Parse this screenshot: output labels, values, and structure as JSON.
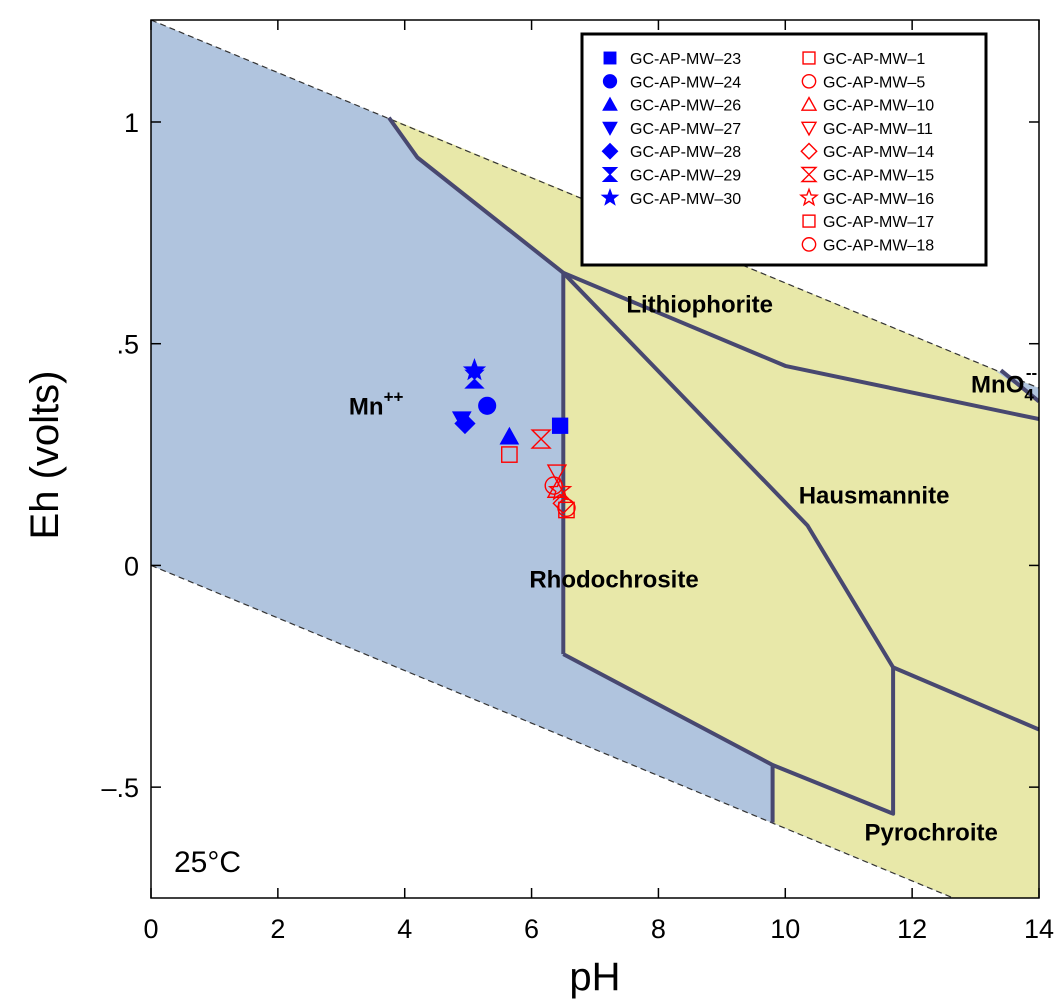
{
  "chart_data": {
    "type": "scatter",
    "subtype": "Eh-pH stability diagram",
    "xlabel": "pH",
    "ylabel": "Eh (volts)",
    "xlim": [
      0,
      14
    ],
    "ylim": [
      -0.75,
      1.23
    ],
    "x_ticks": [
      0,
      2,
      4,
      6,
      8,
      10,
      12,
      14
    ],
    "x_tick_labels": [
      "0",
      "2",
      "4",
      "6",
      "8",
      "10",
      "12",
      "14"
    ],
    "y_ticks": [
      -0.5,
      0,
      0.5,
      1
    ],
    "y_tick_labels": [
      "–.5",
      "0",
      ".5",
      "1"
    ],
    "temperature_label": "25°C",
    "colors": {
      "aqueous_field": "#b0c4de",
      "mineral_field": "#e8e8a9",
      "boundary": "#484870",
      "blue_series": "#0000ff",
      "red_series": "#ff0000"
    },
    "water_stability": {
      "upper": [
        [
          0,
          1.23
        ],
        [
          14,
          0.4
        ]
      ],
      "lower": [
        [
          0,
          0.0
        ],
        [
          14,
          -0.83
        ]
      ]
    },
    "regions": [
      {
        "label": "Mn",
        "superscript": "++",
        "phase": "aqueous",
        "x": 3.55,
        "y": 0.34
      },
      {
        "label": "MnO",
        "subscript": "4",
        "superscript": "--",
        "phase": "aqueous",
        "x": 13.45,
        "y": 0.39
      },
      {
        "label": "Lithiophorite",
        "phase": "mineral",
        "x": 8.65,
        "y": 0.57
      },
      {
        "label": "Hausmannite",
        "phase": "mineral",
        "x": 11.4,
        "y": 0.14
      },
      {
        "label": "Rhodochrosite",
        "phase": "mineral",
        "x": 7.3,
        "y": -0.05
      },
      {
        "label": "Pyrochroite",
        "phase": "mineral",
        "x": 12.3,
        "y": -0.62
      }
    ],
    "boundaries": [
      [
        [
          3.75,
          1.01
        ],
        [
          4.2,
          0.92
        ],
        [
          6.5,
          0.66
        ]
      ],
      [
        [
          6.5,
          0.66
        ],
        [
          6.5,
          -0.2
        ]
      ],
      [
        [
          6.5,
          0.66
        ],
        [
          10,
          0.45
        ],
        [
          14,
          0.33
        ]
      ],
      [
        [
          6.5,
          0.66
        ],
        [
          10.35,
          0.09
        ],
        [
          11.7,
          -0.23
        ]
      ],
      [
        [
          11.7,
          -0.23
        ],
        [
          11.7,
          -0.56
        ],
        [
          9.8,
          -0.45
        ],
        [
          6.5,
          -0.2
        ]
      ],
      [
        [
          9.8,
          -0.45
        ],
        [
          9.8,
          -0.58
        ]
      ],
      [
        [
          11.7,
          -0.23
        ],
        [
          14,
          -0.37
        ]
      ],
      [
        [
          13.4,
          0.44
        ],
        [
          14,
          0.37
        ]
      ]
    ],
    "legend_position": "top-right",
    "series": [
      {
        "name": "GC-AP-MW–23",
        "marker": "square",
        "filled": true,
        "color": "#0000ff",
        "x": 6.45,
        "y": 0.315
      },
      {
        "name": "GC-AP-MW–24",
        "marker": "circle",
        "filled": true,
        "color": "#0000ff",
        "x": 5.3,
        "y": 0.36
      },
      {
        "name": "GC-AP-MW–26",
        "marker": "triangle-up",
        "filled": true,
        "color": "#0000ff",
        "x": 5.65,
        "y": 0.29
      },
      {
        "name": "GC-AP-MW–27",
        "marker": "triangle-down",
        "filled": true,
        "color": "#0000ff",
        "x": 4.9,
        "y": 0.33
      },
      {
        "name": "GC-AP-MW–28",
        "marker": "diamond",
        "filled": true,
        "color": "#0000ff",
        "x": 4.95,
        "y": 0.32
      },
      {
        "name": "GC-AP-MW–29",
        "marker": "hourglass",
        "filled": true,
        "color": "#0000ff",
        "x": 5.1,
        "y": 0.42
      },
      {
        "name": "GC-AP-MW–30",
        "marker": "star",
        "filled": true,
        "color": "#0000ff",
        "x": 5.1,
        "y": 0.44
      },
      {
        "name": "GC-AP-MW–1",
        "marker": "square",
        "filled": false,
        "color": "#ff0000",
        "x": 5.65,
        "y": 0.25
      },
      {
        "name": "GC-AP-MW–5",
        "marker": "circle",
        "filled": false,
        "color": "#ff0000",
        "x": 6.35,
        "y": 0.18
      },
      {
        "name": "GC-AP-MW–10",
        "marker": "triangle-up",
        "filled": false,
        "color": "#ff0000",
        "x": 6.4,
        "y": 0.17
      },
      {
        "name": "GC-AP-MW–11",
        "marker": "triangle-down",
        "filled": false,
        "color": "#ff0000",
        "x": 6.4,
        "y": 0.21
      },
      {
        "name": "GC-AP-MW–14",
        "marker": "diamond",
        "filled": false,
        "color": "#ff0000",
        "x": 6.5,
        "y": 0.14
      },
      {
        "name": "GC-AP-MW–15",
        "marker": "hourglass",
        "filled": false,
        "color": "#ff0000",
        "x": 6.15,
        "y": 0.285
      },
      {
        "name": "GC-AP-MW–16",
        "marker": "star",
        "filled": false,
        "color": "#ff0000",
        "x": 6.45,
        "y": 0.17
      },
      {
        "name": "GC-AP-MW–17",
        "marker": "square",
        "filled": false,
        "color": "#ff0000",
        "x": 6.55,
        "y": 0.125
      },
      {
        "name": "GC-AP-MW–18",
        "marker": "circle",
        "filled": false,
        "color": "#ff0000",
        "x": 6.55,
        "y": 0.13
      }
    ]
  }
}
